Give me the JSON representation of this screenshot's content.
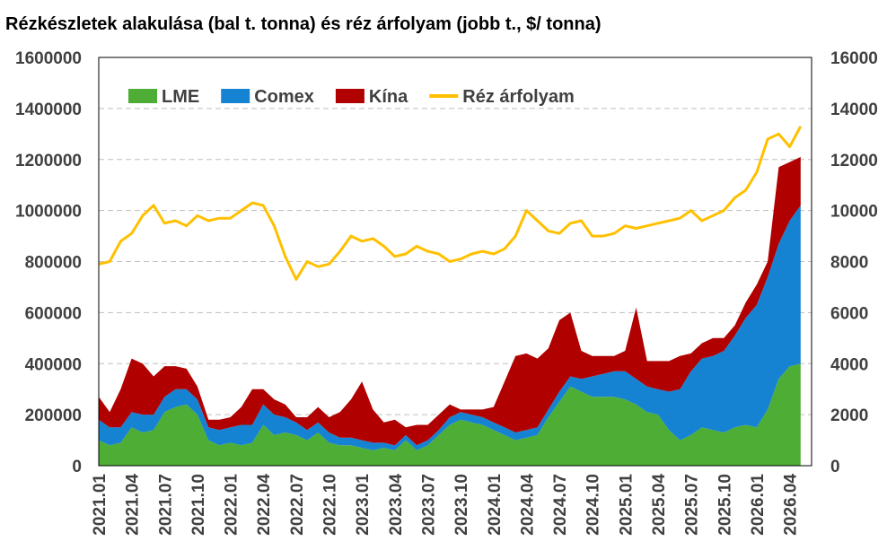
{
  "title": "Rézkészletek alakulása (bal t. tonna) és réz árfolyam (jobb t., $/ tonna)",
  "chart_data": {
    "type": "area",
    "title": "Rézkészletek alakulása (bal t. tonna) és réz árfolyam (jobb t., $/ tonna)",
    "x_categories": [
      "2021.01",
      "2021.04",
      "2021.07",
      "2021.10",
      "2022.01",
      "2022.04",
      "2022.07",
      "2022.10",
      "2023.01",
      "2023.04",
      "2023.07",
      "2023.10",
      "2024.01",
      "2024.04",
      "2024.07",
      "2024.10",
      "2025.01",
      "2025.04",
      "2025.07",
      "2025.10",
      "2026.01",
      "2026.04"
    ],
    "x_tick_positions": [
      0,
      3,
      6,
      9,
      12,
      15,
      18,
      21,
      24,
      27,
      30,
      33,
      36,
      39,
      42,
      45,
      48,
      51,
      54,
      57,
      60,
      63
    ],
    "x_range": [
      0,
      65
    ],
    "y_left_range": [
      0,
      1600000
    ],
    "y_left_ticks": [
      "0",
      "200000",
      "400000",
      "600000",
      "800000",
      "1000000",
      "1200000",
      "1400000",
      "1600000"
    ],
    "y_right_range": [
      0,
      16000
    ],
    "y_right_ticks": [
      "0",
      "2000",
      "4000",
      "6000",
      "8000",
      "10000",
      "12000",
      "14000",
      "16000"
    ],
    "grid": true,
    "legend_position": "top-left inside",
    "series": [
      {
        "name": "LME",
        "kind": "stacked-area",
        "axis": "left",
        "color": "#4EAD35",
        "x": [
          0,
          1,
          2,
          3,
          4,
          5,
          6,
          7,
          8,
          9,
          10,
          11,
          12,
          13,
          14,
          15,
          16,
          17,
          18,
          19,
          20,
          21,
          22,
          23,
          24,
          25,
          26,
          27,
          28,
          29,
          30,
          31,
          32,
          33,
          34,
          35,
          36,
          37,
          38,
          39,
          40,
          41,
          42,
          43,
          44,
          45,
          46,
          47,
          48,
          49,
          50,
          51,
          52,
          53,
          54,
          55,
          56,
          57,
          58,
          59,
          60,
          61,
          62,
          63,
          64
        ],
        "values": [
          100000,
          80000,
          90000,
          150000,
          130000,
          140000,
          210000,
          230000,
          240000,
          200000,
          100000,
          80000,
          90000,
          80000,
          90000,
          160000,
          120000,
          130000,
          120000,
          100000,
          130000,
          90000,
          80000,
          80000,
          70000,
          60000,
          70000,
          60000,
          100000,
          60000,
          80000,
          120000,
          160000,
          180000,
          170000,
          160000,
          140000,
          120000,
          100000,
          110000,
          120000,
          190000,
          250000,
          310000,
          290000,
          270000,
          270000,
          270000,
          260000,
          240000,
          210000,
          200000,
          140000,
          100000,
          120000,
          150000,
          140000,
          130000,
          150000,
          160000,
          150000,
          220000,
          340000,
          390000,
          400000
        ]
      },
      {
        "name": "Comex",
        "kind": "stacked-area",
        "axis": "left",
        "color": "#1583D2",
        "x": [
          0,
          1,
          2,
          3,
          4,
          5,
          6,
          7,
          8,
          9,
          10,
          11,
          12,
          13,
          14,
          15,
          16,
          17,
          18,
          19,
          20,
          21,
          22,
          23,
          24,
          25,
          26,
          27,
          28,
          29,
          30,
          31,
          32,
          33,
          34,
          35,
          36,
          37,
          38,
          39,
          40,
          41,
          42,
          43,
          44,
          45,
          46,
          47,
          48,
          49,
          50,
          51,
          52,
          53,
          54,
          55,
          56,
          57,
          58,
          59,
          60,
          61,
          62,
          63,
          64
        ],
        "values": [
          80000,
          70000,
          60000,
          60000,
          70000,
          60000,
          60000,
          70000,
          60000,
          60000,
          50000,
          60000,
          60000,
          80000,
          70000,
          80000,
          80000,
          60000,
          50000,
          40000,
          40000,
          40000,
          30000,
          30000,
          30000,
          30000,
          20000,
          20000,
          20000,
          20000,
          20000,
          20000,
          30000,
          30000,
          30000,
          30000,
          30000,
          30000,
          30000,
          30000,
          30000,
          30000,
          40000,
          40000,
          50000,
          80000,
          90000,
          100000,
          110000,
          100000,
          100000,
          100000,
          150000,
          200000,
          250000,
          270000,
          290000,
          320000,
          360000,
          420000,
          480000,
          520000,
          530000,
          570000,
          620000
        ]
      },
      {
        "name": "Kína",
        "kind": "stacked-area",
        "axis": "left",
        "color": "#B00000",
        "x": [
          0,
          1,
          2,
          3,
          4,
          5,
          6,
          7,
          8,
          9,
          10,
          11,
          12,
          13,
          14,
          15,
          16,
          17,
          18,
          19,
          20,
          21,
          22,
          23,
          24,
          25,
          26,
          27,
          28,
          29,
          30,
          31,
          32,
          33,
          34,
          35,
          36,
          37,
          38,
          39,
          40,
          41,
          42,
          43,
          44,
          45,
          46,
          47,
          48,
          49,
          50,
          51,
          52,
          53,
          54,
          55,
          56,
          57,
          58,
          59,
          60,
          61,
          62,
          63,
          64
        ],
        "values": [
          90000,
          60000,
          150000,
          210000,
          200000,
          150000,
          120000,
          90000,
          80000,
          50000,
          30000,
          40000,
          40000,
          70000,
          140000,
          60000,
          60000,
          50000,
          20000,
          50000,
          60000,
          60000,
          100000,
          150000,
          230000,
          130000,
          80000,
          100000,
          30000,
          80000,
          60000,
          60000,
          50000,
          10000,
          20000,
          30000,
          60000,
          180000,
          300000,
          300000,
          270000,
          240000,
          280000,
          250000,
          110000,
          80000,
          70000,
          60000,
          80000,
          280000,
          100000,
          110000,
          120000,
          130000,
          70000,
          60000,
          70000,
          50000,
          40000,
          60000,
          80000,
          60000,
          300000,
          230000,
          190000
        ]
      },
      {
        "name": "Réz árfolyam",
        "kind": "line",
        "axis": "right",
        "color": "#FFC000",
        "x": [
          0,
          1,
          2,
          3,
          4,
          5,
          6,
          7,
          8,
          9,
          10,
          11,
          12,
          13,
          14,
          15,
          16,
          17,
          18,
          19,
          20,
          21,
          22,
          23,
          24,
          25,
          26,
          27,
          28,
          29,
          30,
          31,
          32,
          33,
          34,
          35,
          36,
          37,
          38,
          39,
          40,
          41,
          42,
          43,
          44,
          45,
          46,
          47,
          48,
          49,
          50,
          51,
          52,
          53,
          54,
          55,
          56,
          57,
          58,
          59,
          60,
          61,
          62,
          63,
          64
        ],
        "values": [
          7900,
          8000,
          8800,
          9100,
          9800,
          10200,
          9500,
          9600,
          9400,
          9800,
          9600,
          9700,
          9700,
          10000,
          10300,
          10200,
          9400,
          8200,
          7300,
          8000,
          7800,
          7900,
          8400,
          9000,
          8800,
          8900,
          8600,
          8200,
          8300,
          8600,
          8400,
          8300,
          8000,
          8100,
          8300,
          8400,
          8300,
          8500,
          9000,
          10000,
          9600,
          9200,
          9100,
          9500,
          9600,
          9000,
          9000,
          9100,
          9400,
          9300,
          9400,
          9500,
          9600,
          9700,
          10000,
          9600,
          9800,
          10000,
          10500,
          10800,
          11500,
          12800,
          13000,
          12500,
          13300
        ]
      }
    ]
  }
}
